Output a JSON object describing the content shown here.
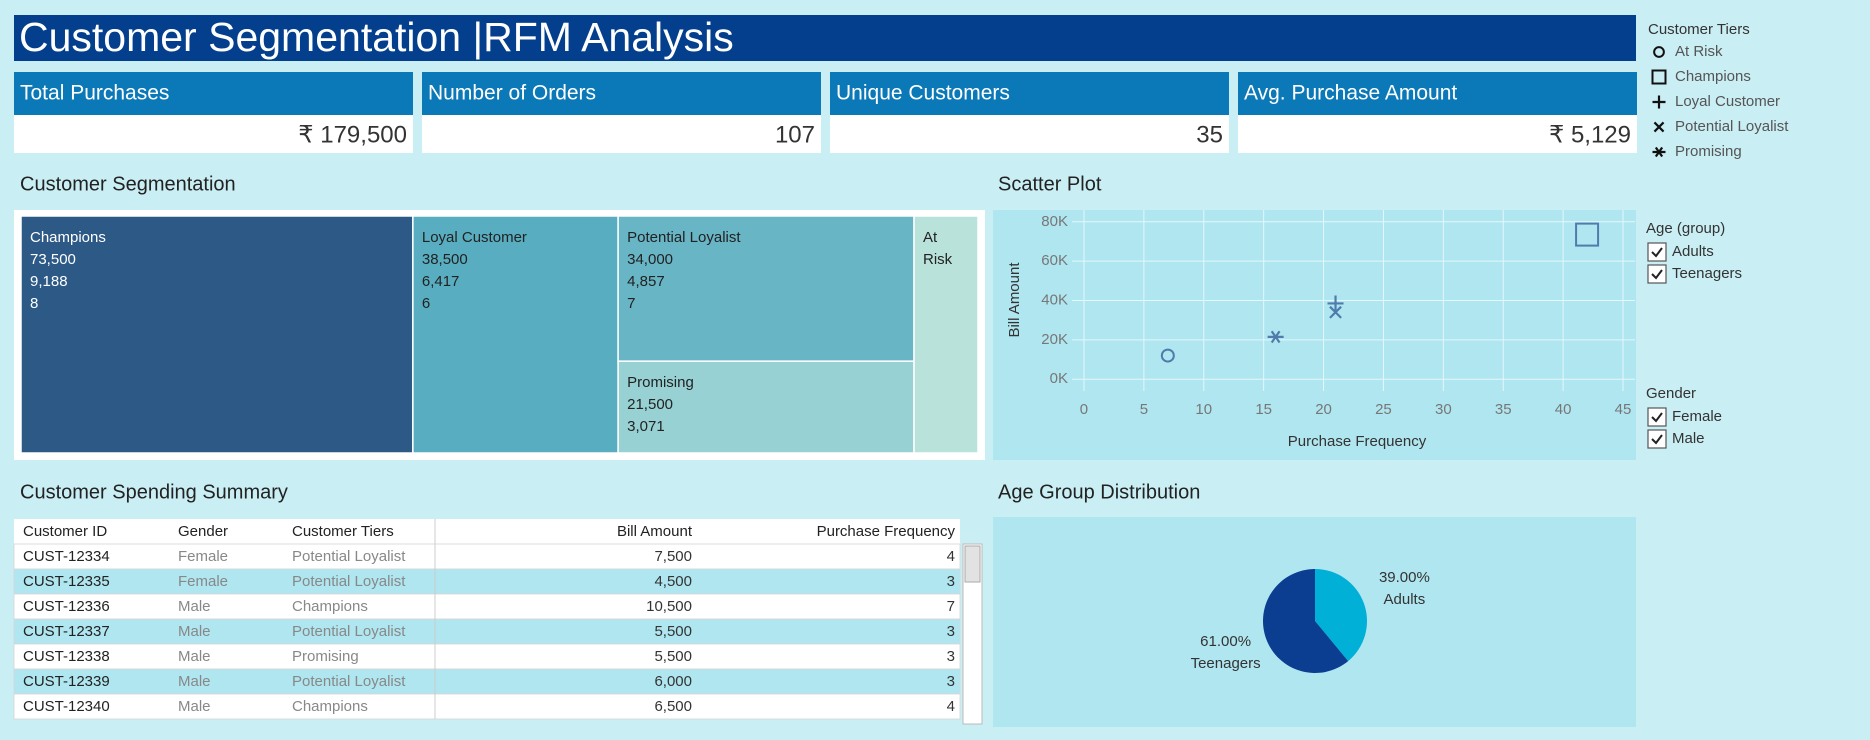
{
  "header": {
    "title": "Customer Segmentation |RFM Analysis"
  },
  "kpis": [
    {
      "title": "Total Purchases",
      "value": "₹ 179,500"
    },
    {
      "title": "Number of Orders",
      "value": "107"
    },
    {
      "title": "Unique Customers",
      "value": "35"
    },
    {
      "title": "Avg. Purchase Amount",
      "value": "₹ 5,129"
    }
  ],
  "filters": [
    {
      "title": "Age (group)",
      "options": [
        "Adults",
        "Teenagers"
      ]
    },
    {
      "title": "Gender",
      "options": [
        "Female",
        "Male"
      ]
    }
  ],
  "chart_data": [
    {
      "type": "treemap",
      "title": "Customer Segmentation",
      "categories": [
        "Champions",
        "Loyal Customer",
        "Potential Loyalist",
        "Promising",
        "At Risk"
      ],
      "values": [
        73500,
        38500,
        34000,
        21500,
        12000
      ],
      "value_labels": [
        "73,500",
        "38,500",
        "34,000",
        "21,500",
        null
      ],
      "avg_labels": [
        "9,188",
        "6,417",
        "4,857",
        "3,071",
        null
      ],
      "count_labels": [
        "8",
        "6",
        "7",
        null,
        null
      ],
      "colors": [
        "#2d5986",
        "#58aec0",
        "#68b5c5",
        "#98d1d3",
        "#b9e3da"
      ]
    },
    {
      "type": "scatter",
      "title": "Scatter Plot",
      "xlabel": "Purchase Frequency",
      "ylabel": "Bill Amount",
      "legend_title": "Customer Tiers",
      "color": "#4f7cac",
      "grid": true,
      "xlim": [
        -1,
        46
      ],
      "xticks": [
        0,
        5,
        10,
        15,
        20,
        25,
        30,
        35,
        40,
        45
      ],
      "ylim": [
        -6000,
        86000
      ],
      "yticks": [
        {
          "value": 0,
          "label": "0K"
        },
        {
          "value": 20000,
          "label": "20K"
        },
        {
          "value": 40000,
          "label": "40K"
        },
        {
          "value": 60000,
          "label": "60K"
        },
        {
          "value": 80000,
          "label": "80K"
        }
      ],
      "series": [
        {
          "name": "At Risk",
          "marker": "circle",
          "x": [
            7
          ],
          "values": [
            12000
          ]
        },
        {
          "name": "Champions",
          "marker": "square",
          "x": [
            42
          ],
          "values": [
            73500
          ]
        },
        {
          "name": "Loyal Customer",
          "marker": "plus",
          "x": [
            21
          ],
          "values": [
            38500
          ]
        },
        {
          "name": "Potential Loyalist",
          "marker": "x",
          "x": [
            21
          ],
          "values": [
            34000
          ]
        },
        {
          "name": "Promising",
          "marker": "asterisk",
          "x": [
            16
          ],
          "values": [
            21500
          ]
        }
      ]
    },
    {
      "type": "pie",
      "title": "Age Group Distribution",
      "categories": [
        "Adults",
        "Teenagers"
      ],
      "values": [
        39,
        61
      ],
      "value_labels": [
        "39.00%",
        "61.00%"
      ],
      "colors": [
        "#00b0d6",
        "#0b3d91"
      ]
    }
  ],
  "table": {
    "title": "Customer Spending Summary",
    "columns": [
      "Customer ID",
      "Gender",
      "Customer Tiers",
      "Bill Amount",
      "Purchase Frequency"
    ],
    "rows": [
      [
        "CUST-12334",
        "Female",
        "Potential Loyalist",
        "7,500",
        "4"
      ],
      [
        "CUST-12335",
        "Female",
        "Potential Loyalist",
        "4,500",
        "3"
      ],
      [
        "CUST-12336",
        "Male",
        "Champions",
        "10,500",
        "7"
      ],
      [
        "CUST-12337",
        "Male",
        "Potential Loyalist",
        "5,500",
        "3"
      ],
      [
        "CUST-12338",
        "Male",
        "Promising",
        "5,500",
        "3"
      ],
      [
        "CUST-12339",
        "Male",
        "Potential Loyalist",
        "6,000",
        "3"
      ],
      [
        "CUST-12340",
        "Male",
        "Champions",
        "6,500",
        "4"
      ]
    ]
  }
}
